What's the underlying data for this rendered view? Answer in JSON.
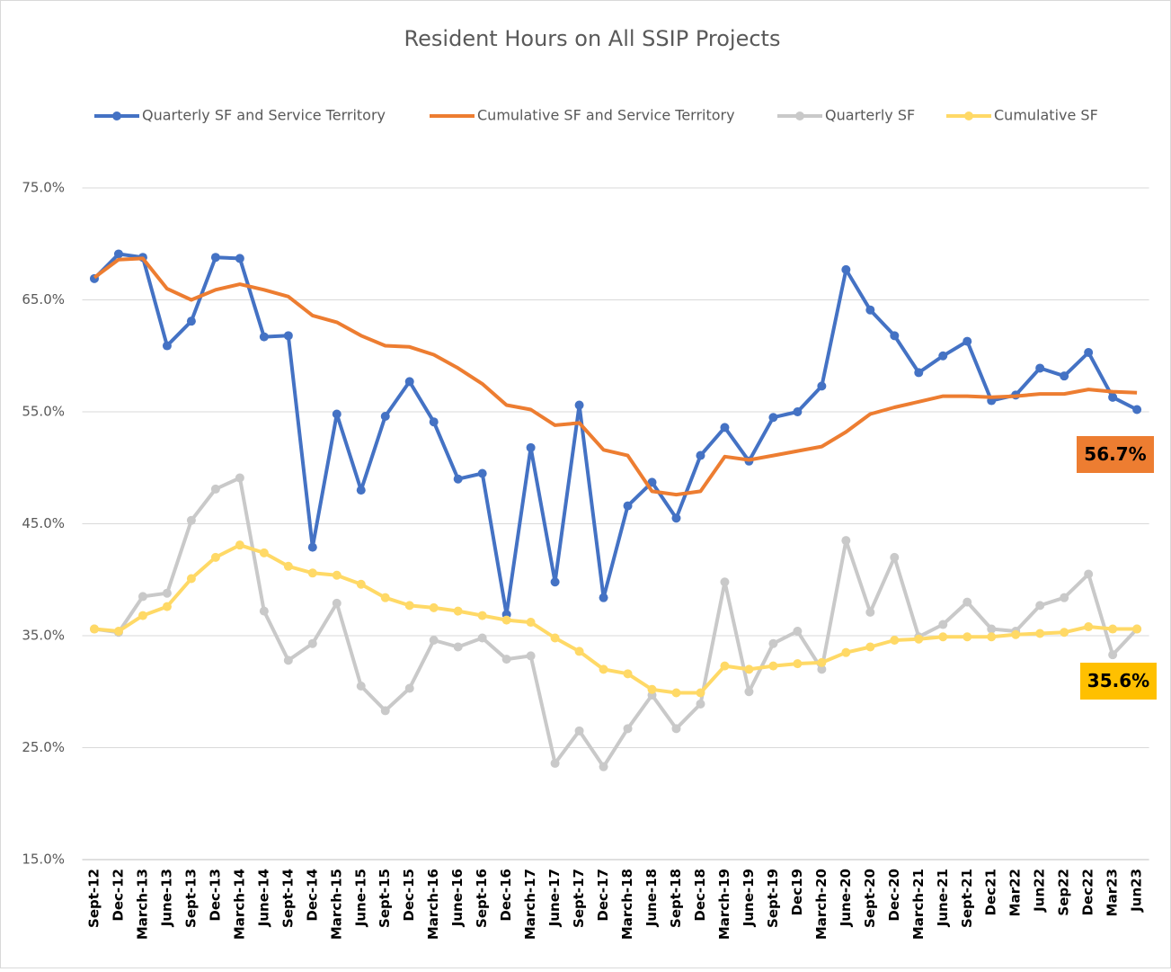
{
  "chart_data": {
    "type": "line",
    "title": "Resident Hours on All SSIP Projects",
    "categories": [
      "Sept-12",
      "Dec-12",
      "March-13",
      "June-13",
      "Sept-13",
      "Dec-13",
      "March-14",
      "June-14",
      "Sept-14",
      "Dec-14",
      "March-15",
      "June-15",
      "Sept-15",
      "Dec-15",
      "March-16",
      "June-16",
      "Sept-16",
      "Dec-16",
      "March-17",
      "June-17",
      "Sept-17",
      "Dec-17",
      "March-18",
      "June-18",
      "Sept-18",
      "Dec-18",
      "March-19",
      "June-19",
      "Sept-19",
      "Dec19",
      "March-20",
      "June-20",
      "Sept-20",
      "Dec-20",
      "March-21",
      "June-21",
      "Sept-21",
      "Dec21",
      "Mar22",
      "Jun22",
      "Sep22",
      "Dec22",
      "Mar23",
      "Jun23"
    ],
    "series": [
      {
        "name": "Quarterly SF and Service Territory",
        "color": "#4472c4",
        "marker": true,
        "values": [
          66.9,
          69.1,
          68.8,
          60.9,
          63.1,
          68.8,
          68.7,
          61.7,
          61.8,
          42.9,
          54.8,
          48.0,
          54.6,
          57.7,
          54.1,
          49.0,
          49.5,
          36.9,
          51.8,
          39.8,
          55.6,
          38.4,
          46.6,
          48.7,
          45.5,
          51.1,
          53.6,
          50.6,
          54.5,
          55.0,
          57.3,
          67.7,
          64.1,
          61.8,
          58.5,
          60.0,
          61.3,
          56.0,
          56.5,
          58.9,
          58.2,
          60.3,
          56.3,
          55.2
        ]
      },
      {
        "name": "Cumulative SF and Service Territory",
        "color": "#ed7d31",
        "marker": false,
        "values": [
          67.0,
          68.6,
          68.7,
          66.0,
          65.0,
          65.9,
          66.4,
          65.9,
          65.3,
          63.6,
          63.0,
          61.8,
          60.9,
          60.8,
          60.1,
          58.9,
          57.5,
          55.6,
          55.2,
          53.8,
          54.0,
          51.6,
          51.1,
          47.9,
          47.6,
          47.9,
          51.0,
          50.7,
          51.1,
          51.5,
          51.9,
          53.2,
          54.8,
          55.4,
          55.9,
          56.4,
          56.4,
          56.3,
          56.4,
          56.6,
          56.6,
          57.0,
          56.8,
          56.7
        ]
      },
      {
        "name": "Quarterly SF",
        "color": "#c9c9c9",
        "marker": true,
        "values": [
          35.6,
          35.3,
          38.5,
          38.8,
          45.3,
          48.1,
          49.1,
          37.2,
          32.8,
          34.3,
          37.9,
          30.5,
          28.3,
          30.3,
          34.6,
          34.0,
          34.8,
          32.9,
          33.2,
          23.6,
          26.5,
          23.3,
          26.7,
          29.7,
          26.7,
          28.9,
          39.8,
          30.0,
          34.3,
          35.4,
          32.0,
          43.5,
          37.1,
          42.0,
          34.9,
          36.0,
          38.0,
          35.6,
          35.4,
          37.7,
          38.4,
          40.5,
          33.3,
          35.6
        ]
      },
      {
        "name": "Cumulative SF",
        "color": "#ffd966",
        "marker": true,
        "values": [
          35.6,
          35.4,
          36.8,
          37.6,
          40.1,
          42.0,
          43.1,
          42.4,
          41.2,
          40.6,
          40.4,
          39.6,
          38.4,
          37.7,
          37.5,
          37.2,
          36.8,
          36.4,
          36.2,
          34.8,
          33.6,
          32.0,
          31.6,
          30.2,
          29.9,
          29.9,
          32.3,
          32.0,
          32.3,
          32.5,
          32.6,
          33.5,
          34.0,
          34.6,
          34.7,
          34.9,
          34.9,
          34.9,
          35.1,
          35.2,
          35.3,
          35.8,
          35.6,
          35.6
        ]
      }
    ],
    "ylim": [
      15,
      75
    ],
    "yticks": [
      {
        "value": 15,
        "label": "15.0%"
      },
      {
        "value": 25,
        "label": "25.0%"
      },
      {
        "value": 35,
        "label": "35.0%"
      },
      {
        "value": 45,
        "label": "45.0%"
      },
      {
        "value": 55,
        "label": "55.0%"
      },
      {
        "value": 65,
        "label": "65.0%"
      },
      {
        "value": 75,
        "label": "75.0%"
      }
    ],
    "grid": true,
    "legend": "top",
    "annotations": [
      {
        "label": "56.7%",
        "color": "#ed7d31"
      },
      {
        "label": "35.6%",
        "color": "#ffc000"
      }
    ]
  }
}
